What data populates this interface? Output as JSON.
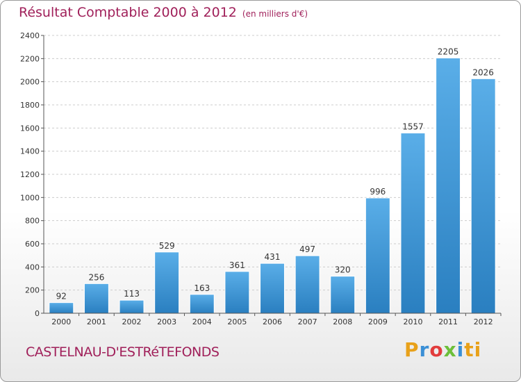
{
  "header": {
    "title": "Résultat Comptable 2000 à 2012",
    "subtitle": "(en milliers d'€)"
  },
  "footer": {
    "commune": "CASTELNAU-D'ESTRéTEFONDS",
    "logo_letters": [
      "P",
      "r",
      "o",
      "x",
      "i",
      "t",
      "i"
    ]
  },
  "colors": {
    "title": "#a0205a",
    "bar_top": "#5aaee8",
    "bar_bottom": "#2a7fc0",
    "grid": "#cccccc"
  },
  "chart_data": {
    "type": "bar",
    "title": "Résultat Comptable 2000 à 2012",
    "subtitle": "(en milliers d'€)",
    "categories": [
      "2000",
      "2001",
      "2002",
      "2003",
      "2004",
      "2005",
      "2006",
      "2007",
      "2008",
      "2009",
      "2010",
      "2011",
      "2012"
    ],
    "values": [
      92,
      256,
      113,
      529,
      163,
      361,
      431,
      497,
      320,
      996,
      1557,
      2205,
      2026
    ],
    "ylim": [
      0,
      2400
    ],
    "yticks": [
      0,
      200,
      400,
      600,
      800,
      1000,
      1200,
      1400,
      1600,
      1800,
      2000,
      2200,
      2400
    ],
    "grid": "horizontal-dashed",
    "data_labels": true
  }
}
